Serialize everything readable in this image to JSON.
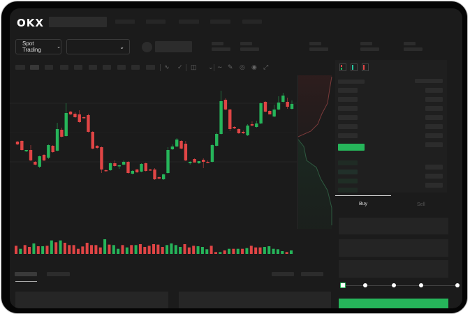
{
  "brand": {
    "logo_text": "OKX"
  },
  "header": {
    "nav_items": [
      "",
      "",
      "",
      "",
      ""
    ]
  },
  "market_bar": {
    "mode_label": "Spot Trading",
    "mode_chevron": "chevron-down-icon",
    "pair_chevron": "chevron-down-icon"
  },
  "toolbar": {
    "icons": [
      "indicator-icon",
      "chart-type-icon",
      "layout-icon",
      "line-tool-icon",
      "ruler-icon",
      "camera-icon",
      "settings-icon",
      "fullscreen-icon"
    ]
  },
  "order_form": {
    "buy_label": "Buy",
    "sell_label": "Sell",
    "active_tab": "Buy",
    "slider_percent": 0,
    "slider_stops": [
      0,
      25,
      50,
      75,
      100
    ]
  },
  "colors": {
    "up": "#26b55a",
    "down": "#e04545",
    "background": "#1b1b1b",
    "submit": "#26b55a"
  },
  "chart_data": {
    "type": "candlestick",
    "title": "",
    "grid": true,
    "candles_ohlc": [
      [
        67,
        68,
        62,
        63
      ],
      [
        68,
        69,
        54,
        55
      ],
      [
        53,
        55,
        52,
        55
      ],
      [
        55,
        62,
        39,
        40
      ],
      [
        38,
        39,
        33,
        34
      ],
      [
        31,
        47,
        29,
        46
      ],
      [
        48,
        49,
        39,
        40
      ],
      [
        44,
        63,
        42,
        62
      ],
      [
        61,
        62,
        51,
        52
      ],
      [
        54,
        94,
        53,
        85
      ],
      [
        84,
        87,
        73,
        74
      ],
      [
        75,
        122,
        74,
        108
      ],
      [
        110,
        111,
        105,
        106
      ],
      [
        107,
        109,
        101,
        102
      ],
      [
        106,
        112,
        94,
        95
      ],
      [
        102,
        103,
        100,
        101
      ],
      [
        105,
        107,
        80,
        81
      ],
      [
        81,
        82,
        56,
        57
      ],
      [
        61,
        62,
        56,
        58
      ],
      [
        59,
        60,
        22,
        27
      ],
      [
        26,
        27,
        24,
        25
      ],
      [
        26,
        37,
        25,
        36
      ],
      [
        36,
        40,
        31,
        32
      ],
      [
        32,
        34,
        28,
        33
      ],
      [
        34,
        40,
        33,
        38
      ],
      [
        38,
        39,
        21,
        22
      ],
      [
        21,
        26,
        20,
        25
      ],
      [
        27,
        28,
        22,
        23
      ],
      [
        24,
        36,
        23,
        35
      ],
      [
        36,
        37,
        24,
        25
      ],
      [
        27,
        28,
        25,
        26
      ],
      [
        27,
        29,
        12,
        13
      ],
      [
        16,
        17,
        13,
        14
      ],
      [
        13,
        21,
        12,
        20
      ],
      [
        22,
        59,
        21,
        55
      ],
      [
        56,
        63,
        55,
        60
      ],
      [
        60,
        72,
        59,
        70
      ],
      [
        68,
        69,
        56,
        57
      ],
      [
        64,
        68,
        39,
        40
      ],
      [
        36,
        39,
        34,
        38
      ],
      [
        42,
        43,
        37,
        37
      ],
      [
        36,
        39,
        35,
        39
      ],
      [
        41,
        43,
        29,
        38
      ],
      [
        38,
        40,
        36,
        37
      ],
      [
        38,
        64,
        37,
        62
      ],
      [
        61,
        80,
        60,
        78
      ],
      [
        78,
        140,
        77,
        125
      ],
      [
        127,
        129,
        112,
        113
      ],
      [
        113,
        114,
        82,
        85
      ],
      [
        88,
        89,
        85,
        86
      ],
      [
        85,
        86,
        78,
        79
      ],
      [
        81,
        83,
        78,
        79
      ],
      [
        76,
        92,
        75,
        90
      ],
      [
        92,
        96,
        89,
        90
      ],
      [
        88,
        97,
        87,
        93
      ],
      [
        93,
        123,
        92,
        122
      ],
      [
        124,
        125,
        109,
        110
      ],
      [
        111,
        112,
        106,
        106
      ],
      [
        103,
        120,
        102,
        113
      ],
      [
        113,
        132,
        112,
        123
      ],
      [
        124,
        137,
        123,
        133
      ],
      [
        124,
        130,
        114,
        117
      ],
      [
        114,
        126,
        113,
        121
      ]
    ],
    "volume": [
      {
        "v": 35,
        "d": "down"
      },
      {
        "v": 22,
        "d": "up"
      },
      {
        "v": 38,
        "d": "down"
      },
      {
        "v": 30,
        "d": "down"
      },
      {
        "v": 45,
        "d": "up"
      },
      {
        "v": 33,
        "d": "down"
      },
      {
        "v": 33,
        "d": "up"
      },
      {
        "v": 35,
        "d": "down"
      },
      {
        "v": 58,
        "d": "up"
      },
      {
        "v": 50,
        "d": "down"
      },
      {
        "v": 58,
        "d": "up"
      },
      {
        "v": 48,
        "d": "down"
      },
      {
        "v": 38,
        "d": "down"
      },
      {
        "v": 38,
        "d": "down"
      },
      {
        "v": 22,
        "d": "down"
      },
      {
        "v": 32,
        "d": "down"
      },
      {
        "v": 48,
        "d": "down"
      },
      {
        "v": 38,
        "d": "down"
      },
      {
        "v": 38,
        "d": "down"
      },
      {
        "v": 28,
        "d": "down"
      },
      {
        "v": 63,
        "d": "up"
      },
      {
        "v": 40,
        "d": "down"
      },
      {
        "v": 38,
        "d": "up"
      },
      {
        "v": 22,
        "d": "up"
      },
      {
        "v": 38,
        "d": "down"
      },
      {
        "v": 28,
        "d": "up"
      },
      {
        "v": 38,
        "d": "down"
      },
      {
        "v": 38,
        "d": "up"
      },
      {
        "v": 42,
        "d": "down"
      },
      {
        "v": 30,
        "d": "down"
      },
      {
        "v": 35,
        "d": "down"
      },
      {
        "v": 42,
        "d": "down"
      },
      {
        "v": 40,
        "d": "down"
      },
      {
        "v": 30,
        "d": "down"
      },
      {
        "v": 38,
        "d": "up"
      },
      {
        "v": 45,
        "d": "up"
      },
      {
        "v": 38,
        "d": "up"
      },
      {
        "v": 30,
        "d": "up"
      },
      {
        "v": 42,
        "d": "down"
      },
      {
        "v": 28,
        "d": "down"
      },
      {
        "v": 35,
        "d": "down"
      },
      {
        "v": 33,
        "d": "up"
      },
      {
        "v": 30,
        "d": "up"
      },
      {
        "v": 20,
        "d": "up"
      },
      {
        "v": 35,
        "d": "down"
      },
      {
        "v": 8,
        "d": "down"
      },
      {
        "v": 8,
        "d": "up"
      },
      {
        "v": 15,
        "d": "down"
      },
      {
        "v": 22,
        "d": "up"
      },
      {
        "v": 22,
        "d": "down"
      },
      {
        "v": 22,
        "d": "up"
      },
      {
        "v": 22,
        "d": "down"
      },
      {
        "v": 25,
        "d": "up"
      },
      {
        "v": 35,
        "d": "down"
      },
      {
        "v": 28,
        "d": "down"
      },
      {
        "v": 28,
        "d": "down"
      },
      {
        "v": 30,
        "d": "up"
      },
      {
        "v": 33,
        "d": "up"
      },
      {
        "v": 22,
        "d": "up"
      },
      {
        "v": 20,
        "d": "up"
      },
      {
        "v": 12,
        "d": "up"
      },
      {
        "v": 8,
        "d": "down"
      },
      {
        "v": 15,
        "d": "up"
      }
    ]
  }
}
